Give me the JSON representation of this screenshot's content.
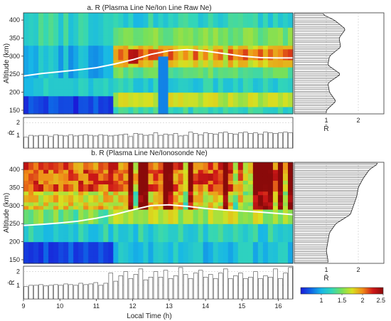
{
  "chart_data": [
    {
      "type": "heatmap",
      "title": "a. R (Plasma Line Ne/Ion Line Raw Ne)",
      "ylabel": "Altitude (km)",
      "ylim": [
        140,
        420
      ],
      "yticks": [
        150,
        200,
        250,
        300,
        350,
        400
      ],
      "xlim": [
        9,
        16.4
      ],
      "white_line": {
        "x": [
          9.0,
          9.5,
          10.0,
          10.5,
          11.0,
          11.5,
          12.0,
          12.5,
          13.0,
          13.5,
          14.0,
          14.5,
          15.0,
          15.5,
          16.0,
          16.4
        ],
        "y": [
          245,
          252,
          257,
          262,
          268,
          278,
          290,
          305,
          315,
          318,
          314,
          307,
          300,
          296,
          295,
          295
        ]
      },
      "side_profile": {
        "xlabel": "R̄",
        "xticks": [
          1,
          2
        ],
        "xlim": [
          0,
          2.8
        ],
        "altitudes": [
          150,
          175,
          200,
          225,
          250,
          275,
          300,
          325,
          350,
          375,
          400,
          415
        ],
        "values": [
          1.0,
          1.3,
          1.1,
          1.05,
          1.45,
          1.05,
          1.1,
          1.45,
          1.4,
          1.6,
          1.25,
          0.9
        ]
      },
      "bar_strip": {
        "ylabel": "R̄",
        "yticks": [
          1,
          2
        ],
        "ylim": [
          0,
          2.4
        ],
        "values": [
          0.85,
          1.0,
          0.95,
          1.0,
          1.0,
          0.9,
          1.05,
          1.0,
          0.95,
          1.05,
          0.95,
          1.0,
          1.05,
          1.0,
          0.95,
          1.05,
          1.0,
          0.95,
          1.0,
          1.05,
          1.1,
          0.9,
          1.15,
          1.1,
          1.0,
          1.05,
          1.2,
          1.0,
          1.1,
          1.05,
          1.15,
          0.95,
          1.0,
          1.25,
          1.15,
          1.05,
          1.2,
          1.15,
          1.1,
          1.2,
          1.25,
          1.15,
          1.1,
          1.2,
          1.25,
          1.15,
          1.2,
          1.1,
          1.25,
          1.2,
          1.15,
          1.2,
          1.25,
          1.2
        ]
      }
    },
    {
      "type": "heatmap",
      "title": "b. R (Plasma Line Ne/Ionosonde Ne)",
      "ylabel": "Altitude (km)",
      "xlabel": "Local Time (h)",
      "ylim": [
        140,
        420
      ],
      "yticks": [
        150,
        200,
        250,
        300,
        350,
        400
      ],
      "xlim": [
        9,
        16.4
      ],
      "xticks": [
        9,
        10,
        11,
        12,
        13,
        14,
        15,
        16
      ],
      "white_line": {
        "x": [
          9.0,
          9.5,
          10.0,
          10.5,
          11.0,
          11.5,
          12.0,
          12.5,
          13.0,
          13.5,
          14.0,
          14.5,
          15.0,
          15.5,
          16.0,
          16.4
        ],
        "y": [
          245,
          248,
          252,
          257,
          265,
          275,
          288,
          300,
          302,
          298,
          292,
          288,
          285,
          282,
          278,
          275
        ]
      },
      "side_profile": {
        "xlabel": "R̄",
        "xticks": [
          1,
          2
        ],
        "xlim": [
          0,
          2.8
        ],
        "altitudes": [
          150,
          175,
          200,
          225,
          250,
          275,
          300,
          325,
          350,
          375,
          400,
          415
        ],
        "values": [
          1.05,
          1.0,
          1.05,
          1.1,
          1.3,
          1.75,
          1.85,
          1.95,
          2.0,
          2.15,
          2.35,
          2.6
        ]
      },
      "bar_strip": {
        "ylabel": "R̄",
        "yticks": [
          1,
          2
        ],
        "ylim": [
          0,
          2.4
        ],
        "values": [
          0.9,
          1.0,
          1.0,
          1.05,
          0.95,
          1.0,
          1.05,
          1.0,
          1.1,
          1.05,
          1.0,
          1.15,
          1.05,
          1.1,
          1.2,
          1.0,
          1.15,
          1.9,
          1.3,
          1.7,
          2.0,
          1.5,
          1.8,
          2.2,
          1.4,
          1.6,
          2.0,
          1.6,
          2.1,
          1.5,
          1.7,
          2.3,
          1.8,
          1.5,
          1.9,
          2.1,
          1.6,
          1.8,
          1.5,
          1.9,
          2.2,
          1.5,
          1.7,
          1.9,
          1.5,
          1.6,
          2.0,
          1.5,
          1.7,
          1.6,
          2.2,
          1.5,
          1.9,
          2.3
        ]
      }
    }
  ],
  "colorbar": {
    "ticks": [
      1,
      1.5,
      2,
      2.5
    ],
    "tick_labels": [
      "1",
      "1.5",
      "2",
      "2.5"
    ],
    "range": [
      0.5,
      2.5
    ],
    "colors": [
      "#1a1ad8",
      "#0f66e6",
      "#18b7e6",
      "#32d6b8",
      "#78e05a",
      "#d8e020",
      "#f08c18",
      "#d01818",
      "#8a0a0a"
    ]
  }
}
